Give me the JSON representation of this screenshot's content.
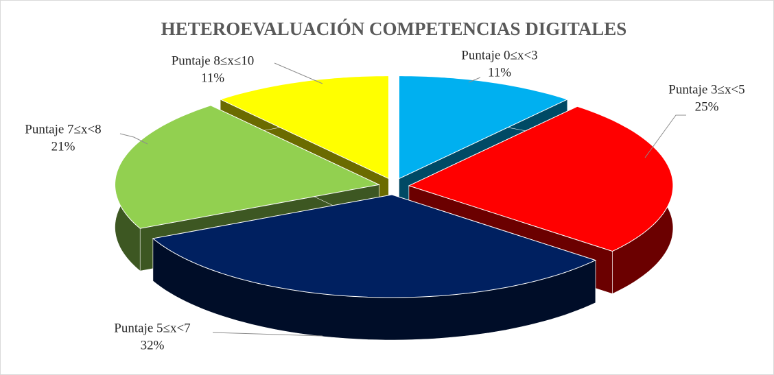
{
  "chart_data": {
    "type": "pie",
    "title": "HETEROEVALUACIÓN COMPETENCIAS DIGITALES",
    "categories": [
      "Puntaje  0≤x<3",
      "Puntaje  3≤x<5",
      "Puntaje  5≤x<7",
      "Puntaje  7≤x<8",
      "Puntaje  8≤x≤10"
    ],
    "values": [
      11,
      25,
      32,
      21,
      11
    ],
    "value_labels": [
      "11%",
      "25%",
      "32%",
      "21%",
      "11%"
    ],
    "colors": [
      "#00b0f0",
      "#ff0000",
      "#002060",
      "#92d050",
      "#ffff00"
    ]
  }
}
